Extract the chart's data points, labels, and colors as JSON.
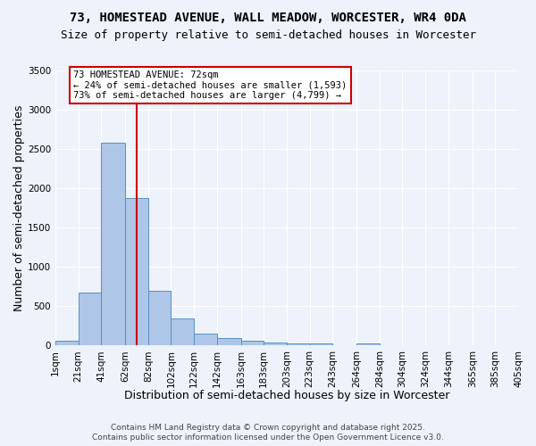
{
  "title_line1": "73, HOMESTEAD AVENUE, WALL MEADOW, WORCESTER, WR4 0DA",
  "title_line2": "Size of property relative to semi-detached houses in Worcester",
  "xlabel": "Distribution of semi-detached houses by size in Worcester",
  "ylabel": "Number of semi-detached properties",
  "property_size": 72,
  "bin_edges": [
    1,
    21,
    41,
    62,
    82,
    102,
    122,
    142,
    163,
    183,
    203,
    223,
    243,
    264,
    284,
    304,
    324,
    344,
    365,
    385,
    405
  ],
  "bin_labels": [
    "1sqm",
    "21sqm",
    "41sqm",
    "62sqm",
    "82sqm",
    "102sqm",
    "122sqm",
    "142sqm",
    "163sqm",
    "183sqm",
    "203sqm",
    "223sqm",
    "243sqm",
    "264sqm",
    "284sqm",
    "304sqm",
    "324sqm",
    "344sqm",
    "365sqm",
    "385sqm",
    "405sqm"
  ],
  "counts": [
    60,
    670,
    2580,
    1880,
    700,
    340,
    150,
    90,
    60,
    40,
    30,
    25,
    0,
    25,
    0,
    0,
    0,
    0,
    0,
    0
  ],
  "bar_color": "#aec6e8",
  "bar_edge_color": "#5a8fc2",
  "vline_color": "#cc0000",
  "vline_x": 72,
  "annotation_line1": "73 HOMESTEAD AVENUE: 72sqm",
  "annotation_line2": "← 24% of semi-detached houses are smaller (1,593)",
  "annotation_line3": "73% of semi-detached houses are larger (4,799) →",
  "annotation_box_color": "#ffffff",
  "annotation_box_edge_color": "#cc0000",
  "ylim": [
    0,
    3500
  ],
  "yticks": [
    0,
    500,
    1000,
    1500,
    2000,
    2500,
    3000,
    3500
  ],
  "background_color": "#eef2fa",
  "footer_line1": "Contains HM Land Registry data © Crown copyright and database right 2025.",
  "footer_line2": "Contains public sector information licensed under the Open Government Licence v3.0.",
  "title_fontsize": 10,
  "subtitle_fontsize": 9,
  "axis_label_fontsize": 9,
  "tick_fontsize": 7.5,
  "footer_fontsize": 6.5
}
